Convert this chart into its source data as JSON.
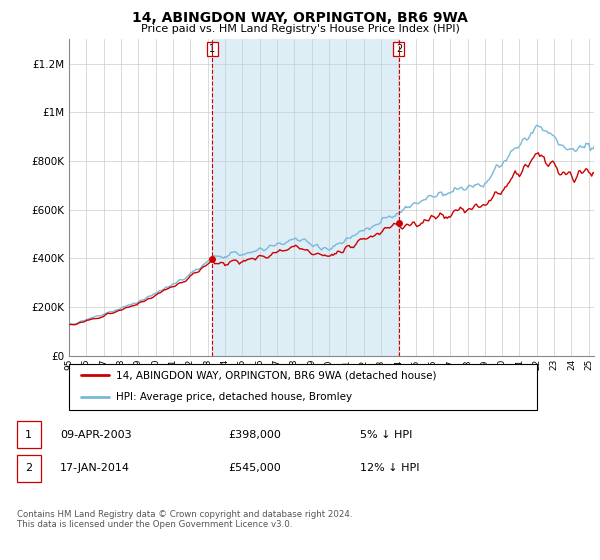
{
  "title": "14, ABINGDON WAY, ORPINGTON, BR6 9WA",
  "subtitle": "Price paid vs. HM Land Registry's House Price Index (HPI)",
  "hpi_label": "HPI: Average price, detached house, Bromley",
  "property_label": "14, ABINGDON WAY, ORPINGTON, BR6 9WA (detached house)",
  "footnote": "Contains HM Land Registry data © Crown copyright and database right 2024.\nThis data is licensed under the Open Government Licence v3.0.",
  "transaction1": {
    "label": "1",
    "date": "09-APR-2003",
    "price": "£398,000",
    "hpi_diff": "5% ↓ HPI"
  },
  "transaction2": {
    "label": "2",
    "date": "17-JAN-2014",
    "price": "£545,000",
    "hpi_diff": "12% ↓ HPI"
  },
  "hpi_color": "#7ab8d9",
  "property_color": "#cc0000",
  "shade_color": "#ddeef7",
  "marker_color": "#cc0000",
  "vline_color": "#cc0000",
  "marker_box_color": "#cc0000",
  "background_color": "#ffffff",
  "grid_color": "#cccccc",
  "ylim": [
    0,
    1300000
  ],
  "yticks": [
    0,
    200000,
    400000,
    600000,
    800000,
    1000000,
    1200000
  ],
  "ytick_labels": [
    "£0",
    "£200K",
    "£400K",
    "£600K",
    "£800K",
    "£1M",
    "£1.2M"
  ],
  "year_start": 1995,
  "year_end": 2025,
  "t1_year": 2003.27,
  "t2_year": 2014.04,
  "price1": 398000,
  "price2": 545000
}
